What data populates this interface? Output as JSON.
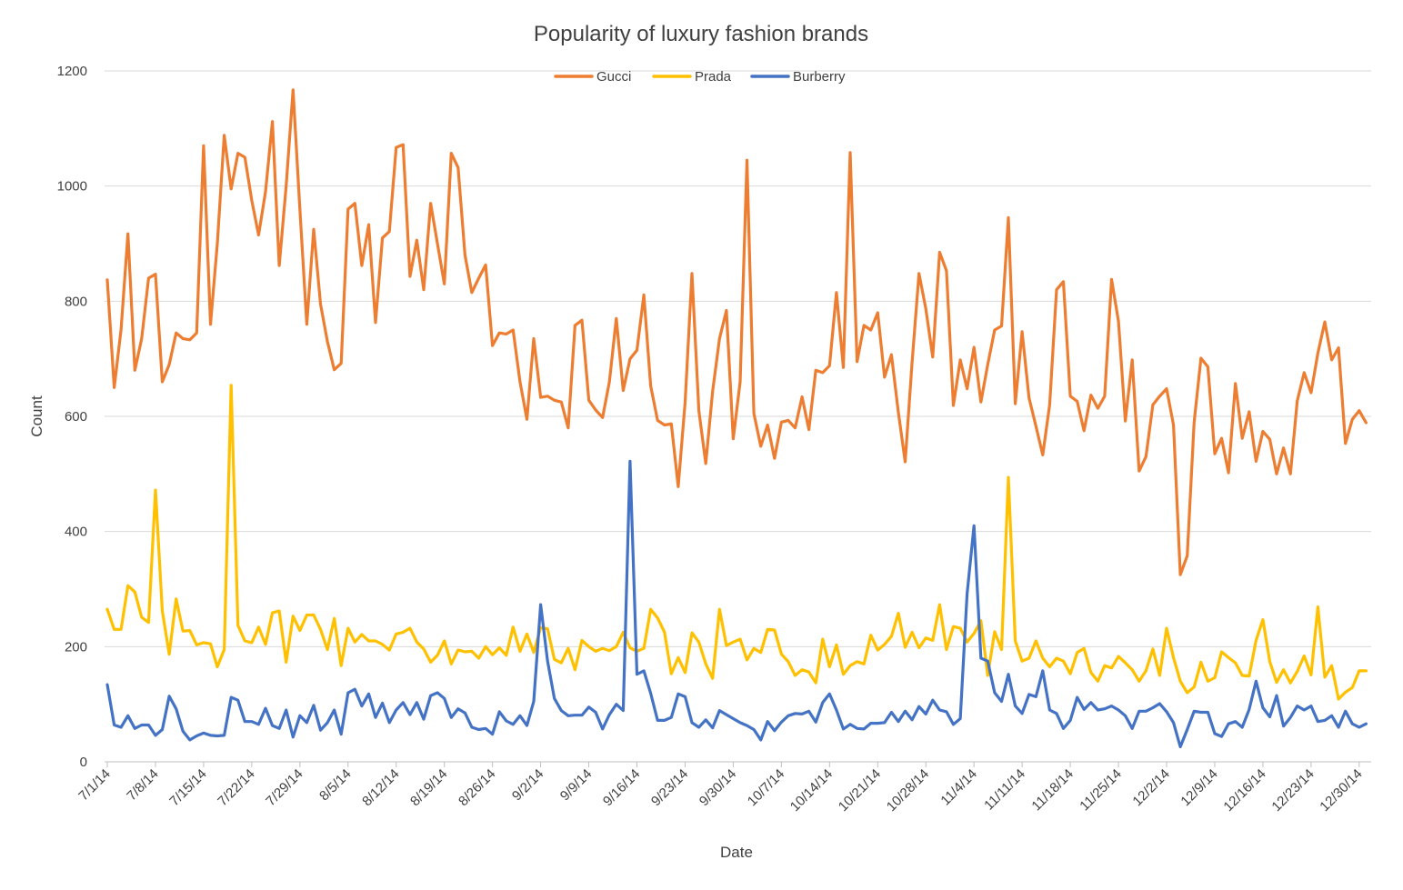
{
  "chart_data": {
    "type": "line",
    "title": "Popularity of luxury fashion brands",
    "xlabel": "Date",
    "ylabel": "Count",
    "ylim": [
      0,
      1200
    ],
    "yticks": [
      0,
      200,
      400,
      600,
      800,
      1000,
      1200
    ],
    "grid": "horizontal",
    "legend_position": "top",
    "x_tick_labels": [
      "7/1/14",
      "7/8/14",
      "7/15/14",
      "7/22/14",
      "7/29/14",
      "8/5/14",
      "8/12/14",
      "8/19/14",
      "8/26/14",
      "9/2/14",
      "9/9/14",
      "9/16/14",
      "9/23/14",
      "9/30/14",
      "10/7/14",
      "10/14/14",
      "10/21/14",
      "10/28/14",
      "11/4/14",
      "11/11/14",
      "11/18/14",
      "11/25/14",
      "12/2/14",
      "12/9/14",
      "12/16/14",
      "12/23/14",
      "12/30/14"
    ],
    "x_start": "7/1/14",
    "x_end": "12/31/14",
    "series": [
      {
        "name": "Gucci",
        "color": "#ED7D31",
        "values": [
          837,
          650,
          750,
          917,
          680,
          735,
          840,
          847,
          660,
          690,
          745,
          735,
          733,
          745,
          1070,
          760,
          900,
          1088,
          995,
          1057,
          1050,
          975,
          915,
          990,
          1112,
          862,
          1000,
          1167,
          960,
          760,
          925,
          795,
          730,
          681,
          692,
          960,
          970,
          862,
          933,
          763,
          910,
          921,
          1067,
          1072,
          843,
          906,
          820,
          970,
          900,
          830,
          1057,
          1032,
          880,
          815,
          840,
          863,
          723,
          745,
          743,
          750,
          660,
          595,
          735,
          633,
          635,
          628,
          625,
          580,
          758,
          767,
          628,
          611,
          598,
          660,
          770,
          645,
          700,
          715,
          811,
          653,
          593,
          585,
          587,
          478,
          625,
          848,
          610,
          518,
          643,
          735,
          784,
          561,
          660,
          1045,
          605,
          548,
          585,
          527,
          590,
          593,
          580,
          634,
          577,
          680,
          676,
          688,
          815,
          685,
          1058,
          695,
          758,
          750,
          780,
          668,
          707,
          607,
          521,
          694,
          848,
          787,
          703,
          885,
          853,
          619,
          698,
          648,
          720,
          625,
          690,
          750,
          757,
          945,
          622,
          747,
          632,
          583,
          533,
          620,
          820,
          834,
          635,
          626,
          575,
          637,
          614,
          635,
          838,
          765,
          592,
          698,
          505,
          530,
          620,
          635,
          648,
          585,
          325,
          358,
          590,
          701,
          686,
          535,
          562,
          502,
          657,
          562,
          608,
          522,
          574,
          560,
          500,
          545,
          500,
          627,
          676,
          641,
          710,
          764,
          698,
          719,
          553,
          595,
          610,
          589
        ]
      },
      {
        "name": "Prada",
        "color": "#FFC000",
        "values": [
          265,
          230,
          230,
          306,
          295,
          251,
          242,
          472,
          262,
          187,
          283,
          227,
          228,
          203,
          207,
          205,
          165,
          195,
          654,
          237,
          210,
          207,
          234,
          204,
          259,
          262,
          173,
          253,
          228,
          255,
          255,
          230,
          195,
          249,
          167,
          232,
          208,
          221,
          210,
          210,
          204,
          194,
          222,
          225,
          232,
          208,
          196,
          173,
          185,
          210,
          170,
          194,
          191,
          192,
          180,
          200,
          186,
          198,
          185,
          234,
          192,
          222,
          190,
          233,
          231,
          178,
          172,
          197,
          160,
          211,
          200,
          192,
          197,
          193,
          200,
          225,
          198,
          192,
          197,
          265,
          250,
          225,
          153,
          181,
          155,
          224,
          208,
          170,
          145,
          265,
          202,
          208,
          213,
          177,
          197,
          190,
          230,
          229,
          187,
          174,
          150,
          160,
          156,
          137,
          213,
          165,
          203,
          152,
          167,
          174,
          170,
          220,
          194,
          204,
          218,
          258,
          199,
          225,
          198,
          215,
          211,
          273,
          195,
          235,
          232,
          208,
          223,
          245,
          150,
          226,
          195,
          494,
          210,
          175,
          180,
          210,
          180,
          165,
          180,
          175,
          153,
          190,
          197,
          155,
          140,
          167,
          163,
          183,
          172,
          160,
          140,
          158,
          196,
          150,
          232,
          181,
          140,
          120,
          130,
          173,
          140,
          146,
          191,
          181,
          172,
          150,
          149,
          211,
          247,
          174,
          138,
          160,
          137,
          157,
          184,
          151,
          269,
          147,
          167,
          109,
          121,
          129,
          158,
          158
        ]
      },
      {
        "name": "Burberry",
        "color": "#4472C4",
        "values": [
          134,
          64,
          60,
          80,
          58,
          64,
          64,
          46,
          56,
          114,
          92,
          53,
          38,
          45,
          50,
          46,
          45,
          46,
          112,
          107,
          70,
          70,
          65,
          93,
          63,
          58,
          90,
          43,
          80,
          68,
          98,
          55,
          68,
          90,
          48,
          120,
          126,
          97,
          118,
          77,
          102,
          68,
          90,
          103,
          82,
          103,
          74,
          115,
          120,
          110,
          77,
          92,
          85,
          60,
          56,
          58,
          48,
          87,
          71,
          65,
          80,
          63,
          105,
          273,
          175,
          110,
          89,
          80,
          81,
          81,
          95,
          86,
          57,
          82,
          100,
          89,
          522,
          152,
          158,
          119,
          72,
          72,
          77,
          118,
          113,
          68,
          60,
          73,
          59,
          89,
          82,
          75,
          68,
          63,
          56,
          38,
          70,
          54,
          69,
          80,
          84,
          83,
          88,
          69,
          103,
          118,
          90,
          57,
          65,
          58,
          57,
          67,
          67,
          68,
          86,
          70,
          88,
          73,
          96,
          83,
          107,
          90,
          87,
          65,
          75,
          292,
          410,
          180,
          175,
          120,
          105,
          152,
          97,
          84,
          117,
          113,
          158,
          90,
          84,
          58,
          72,
          112,
          91,
          103,
          90,
          92,
          97,
          90,
          80,
          58,
          88,
          88,
          94,
          101,
          87,
          68,
          26,
          56,
          88,
          86,
          86,
          49,
          44,
          66,
          70,
          60,
          91,
          140,
          94,
          78,
          115,
          62,
          77,
          97,
          90,
          97,
          70,
          72,
          80,
          60,
          88,
          66,
          60,
          66
        ]
      }
    ]
  }
}
